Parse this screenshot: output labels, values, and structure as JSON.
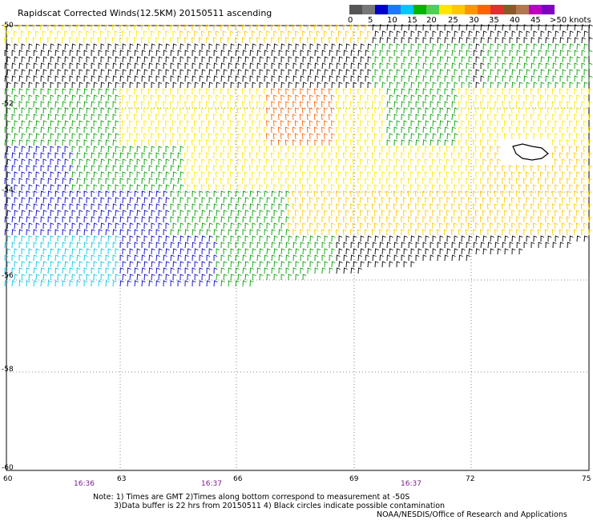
{
  "title": "Rapidscat Corrected Winds(12.5KM) 20150511 ascending",
  "legend": {
    "colors": [
      "#555555",
      "#777777",
      "#0000c8",
      "#1e78ff",
      "#00c8ff",
      "#00b400",
      "#50d050",
      "#ffe600",
      "#ffc800",
      "#ff9600",
      "#ff6400",
      "#e03030",
      "#8b5a2b",
      "#b07850",
      "#c000c0",
      "#8000c0"
    ],
    "labels": [
      "0",
      "5",
      "10",
      "15",
      "20",
      "25",
      "30",
      "35",
      "40",
      "45",
      ">50 knots"
    ]
  },
  "latitude_labels": [
    "-50",
    "-52",
    "-54",
    "-56",
    "-58",
    "-60"
  ],
  "longitude_labels": [
    "60",
    "63",
    "66",
    "69",
    "72",
    "75"
  ],
  "time_labels": [
    "16:36",
    "16:37",
    "16:37"
  ],
  "notes": {
    "line1": "Note: 1) Times are GMT 2)Times along bottom correspond to measurement at -50S",
    "line2": "3)Data buffer is 22 hrs from 20150511 4) Black circles indicate possible contamination",
    "line3": "NOAA/NESDIS/Office of Research and Applications"
  },
  "map": {
    "region": {
      "lon": [
        60,
        75
      ],
      "lat": [
        -60,
        -50
      ]
    },
    "speed_colors": [
      {
        "max_knots": 5,
        "color": "#000000"
      },
      {
        "max_knots": 10,
        "color": "#00c8e6"
      },
      {
        "max_knots": 15,
        "color": "#0000c8"
      },
      {
        "max_knots": 20,
        "color": "#00a000"
      },
      {
        "max_knots": 25,
        "color": "#ffe600"
      },
      {
        "max_knots": 30,
        "color": "#ffc800"
      },
      {
        "max_knots": 35,
        "color": "#ff9600"
      },
      {
        "max_knots": 40,
        "color": "#ff6400"
      }
    ]
  }
}
